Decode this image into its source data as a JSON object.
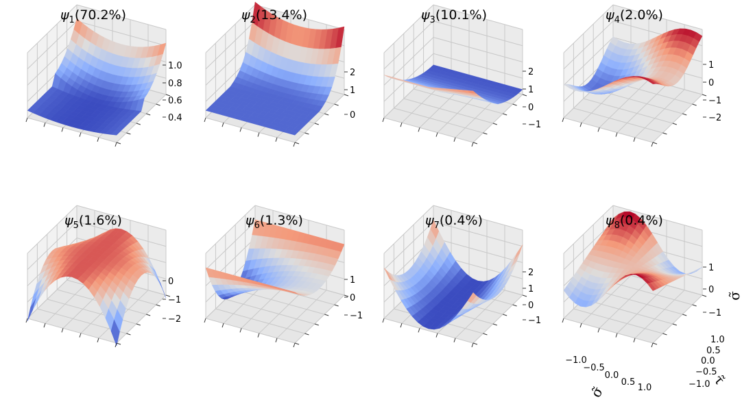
{
  "figure": {
    "rows": 2,
    "cols": 4
  },
  "chart_data": [
    {
      "type": "surface",
      "title_symbol": "ψ",
      "title_sub": "1",
      "title_pct": "(70.2%)",
      "zticks": [
        "1.0",
        "0.8",
        "0.6",
        "0.4"
      ],
      "colormap": "coolwarm"
    },
    {
      "type": "surface",
      "title_symbol": "ψ",
      "title_sub": "2",
      "title_pct": "(13.4%)",
      "zticks": [
        "2",
        "1",
        "0"
      ],
      "colormap": "coolwarm"
    },
    {
      "type": "surface",
      "title_symbol": "ψ",
      "title_sub": "3",
      "title_pct": "(10.1%)",
      "zticks": [
        "2",
        "1",
        "0",
        "−1"
      ],
      "colormap": "coolwarm"
    },
    {
      "type": "surface",
      "title_symbol": "ψ",
      "title_sub": "4",
      "title_pct": "(2.0%)",
      "zticks": [
        "1",
        "0",
        "−1",
        "−2"
      ],
      "colormap": "coolwarm"
    },
    {
      "type": "surface",
      "title_symbol": "ψ",
      "title_sub": "5",
      "title_pct": "(1.6%)",
      "zticks": [
        "0",
        "−1",
        "−2"
      ],
      "colormap": "coolwarm"
    },
    {
      "type": "surface",
      "title_symbol": "ψ",
      "title_sub": "6",
      "title_pct": "(1.3%)",
      "zticks": [
        "1",
        "0",
        "−1"
      ],
      "colormap": "coolwarm"
    },
    {
      "type": "surface",
      "title_symbol": "ψ",
      "title_sub": "7",
      "title_pct": "(0.4%)",
      "zticks": [
        "2",
        "1",
        "0",
        "−1"
      ],
      "colormap": "coolwarm"
    },
    {
      "type": "surface",
      "title_symbol": "ψ",
      "title_sub": "8",
      "title_pct": "(0.4%)",
      "zticks": [
        "1",
        "0",
        "−1"
      ],
      "colormap": "coolwarm",
      "xticks": [
        "−1.0",
        "−0.5",
        "0.0",
        "0.5",
        "1.0"
      ],
      "yticks": [
        "1.0",
        "0.5",
        "0.0",
        "−0.5",
        "−1.0"
      ],
      "xlabel": "σ̃",
      "ylabel": "τ̃",
      "zlabel": "σ̃"
    }
  ]
}
